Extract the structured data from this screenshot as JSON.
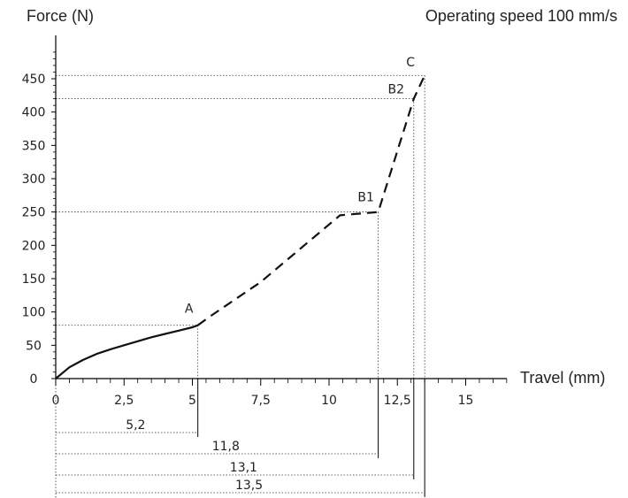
{
  "chart_data": {
    "type": "line",
    "title": "Operating speed 100 mm/s",
    "xlabel": "Travel (mm)",
    "ylabel": "Force (N)",
    "xlim": [
      0,
      16.5
    ],
    "ylim": [
      0,
      500
    ],
    "x_ticks": [
      {
        "value": 0,
        "label": "0"
      },
      {
        "value": 2.5,
        "label": "2,5"
      },
      {
        "value": 5,
        "label": "5"
      },
      {
        "value": 7.5,
        "label": "7,5"
      },
      {
        "value": 10,
        "label": "10"
      },
      {
        "value": 12.5,
        "label": "12,5"
      },
      {
        "value": 15,
        "label": "15"
      }
    ],
    "y_ticks": [
      {
        "value": 0,
        "label": "0"
      },
      {
        "value": 50,
        "label": "50"
      },
      {
        "value": 100,
        "label": "100"
      },
      {
        "value": 150,
        "label": "150"
      },
      {
        "value": 200,
        "label": "200"
      },
      {
        "value": 250,
        "label": "250"
      },
      {
        "value": 300,
        "label": "300"
      },
      {
        "value": 350,
        "label": "350"
      },
      {
        "value": 400,
        "label": "400"
      },
      {
        "value": 450,
        "label": "450"
      }
    ],
    "series": [
      {
        "style": "solid",
        "points": [
          [
            0,
            0
          ],
          [
            0.5,
            17
          ],
          [
            1,
            28
          ],
          [
            1.5,
            37
          ],
          [
            2,
            44
          ],
          [
            2.5,
            50
          ],
          [
            3,
            56
          ],
          [
            3.5,
            62
          ],
          [
            4,
            67
          ],
          [
            4.5,
            72
          ],
          [
            5,
            77
          ],
          [
            5.2,
            80
          ]
        ]
      },
      {
        "style": "dashed",
        "points": [
          [
            5.2,
            80
          ],
          [
            5.6,
            92
          ],
          [
            7.5,
            145
          ],
          [
            10.4,
            245
          ],
          [
            11.8,
            250
          ],
          [
            13.1,
            420
          ],
          [
            13.5,
            455
          ]
        ]
      }
    ],
    "points": [
      {
        "label": "A",
        "x": 5.2,
        "y": 80
      },
      {
        "label": "B1",
        "x": 11.8,
        "y": 250
      },
      {
        "label": "B2",
        "x": 13.1,
        "y": 420
      },
      {
        "label": "C",
        "x": 13.5,
        "y": 455
      }
    ],
    "dimensions": [
      {
        "label": "5,2",
        "x": 5.2
      },
      {
        "label": "11,8",
        "x": 11.8
      },
      {
        "label": "13,1",
        "x": 13.1
      },
      {
        "label": "13,5",
        "x": 13.5
      }
    ],
    "grid": false,
    "legend": "none"
  }
}
